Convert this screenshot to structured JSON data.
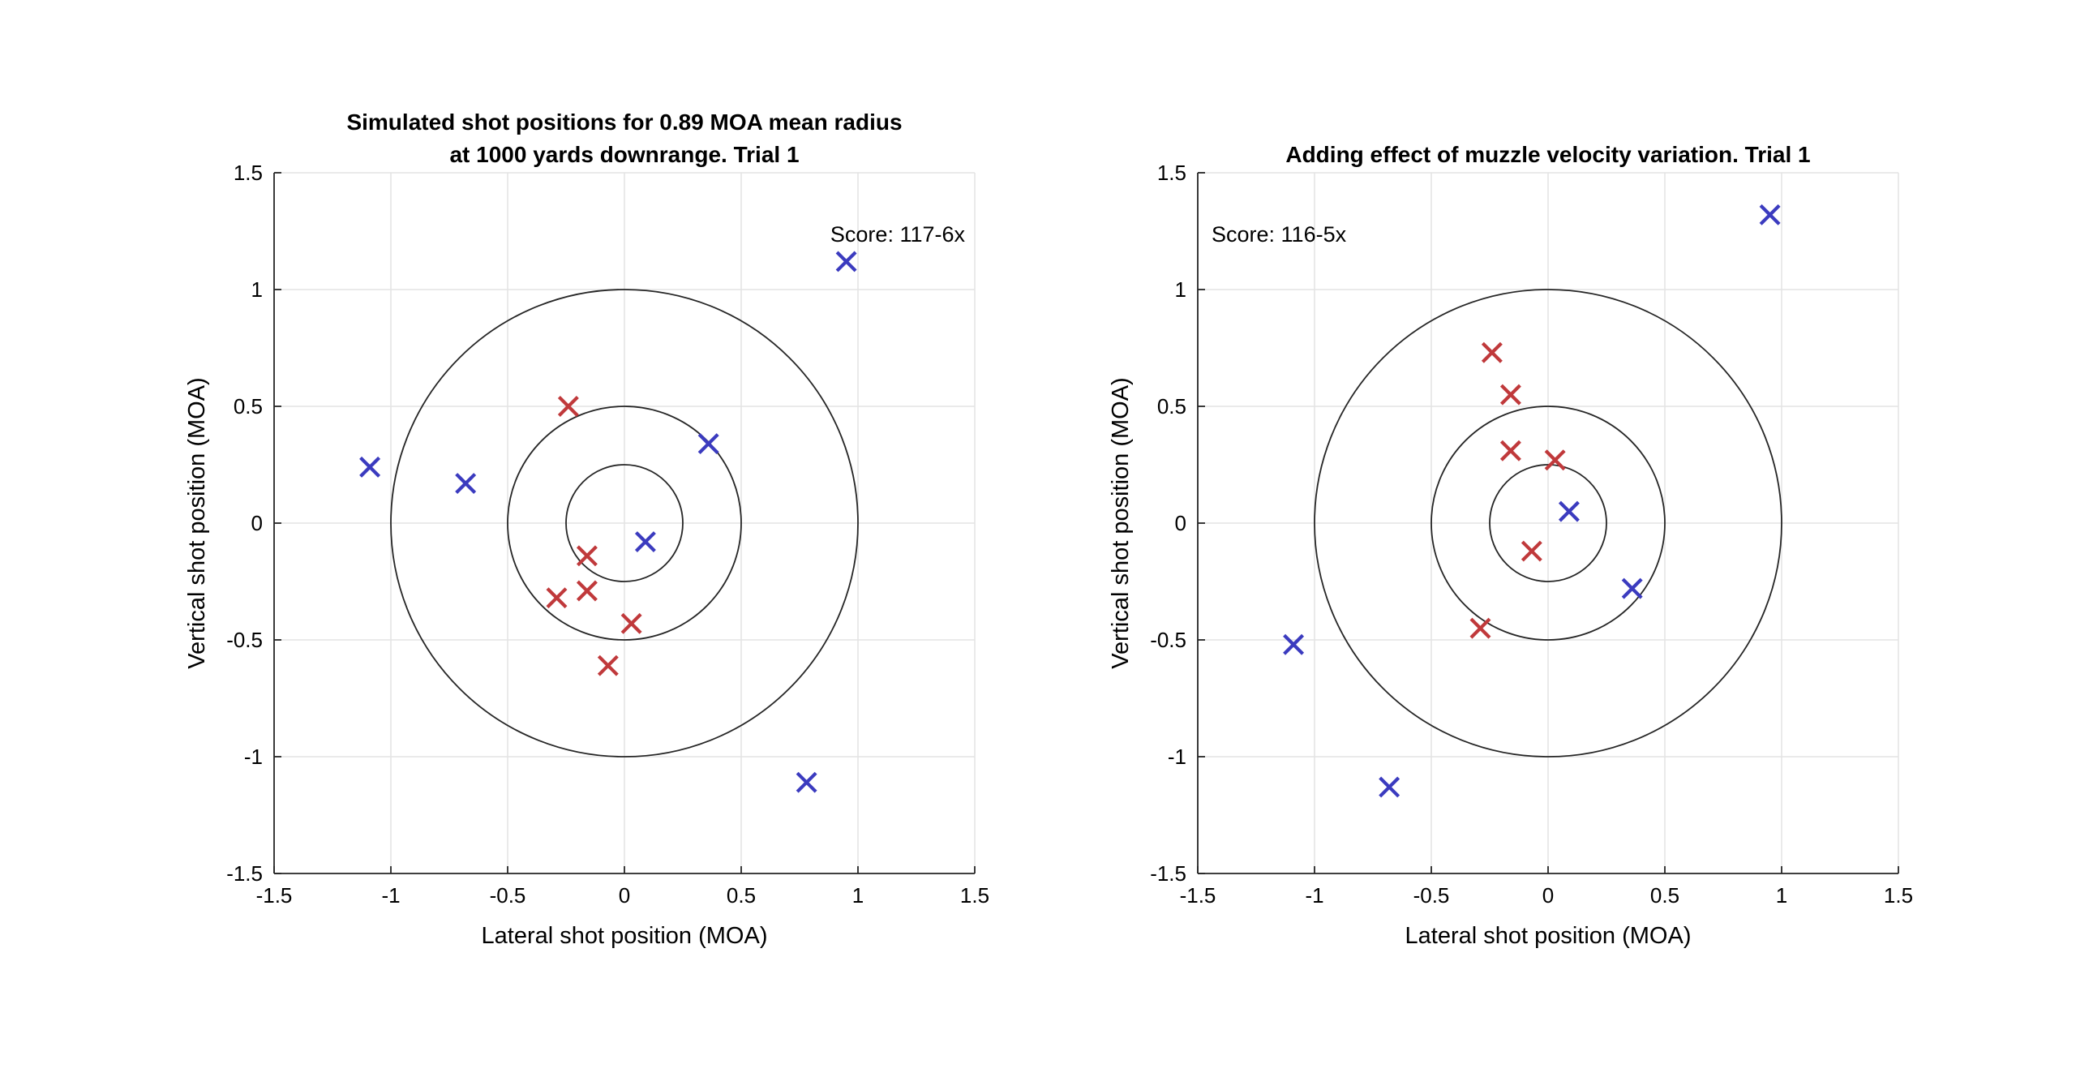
{
  "chart_data": [
    {
      "type": "scatter",
      "title": [
        "Simulated shot positions for 0.89 MOA mean radius",
        "at 1000 yards downrange. Trial 1"
      ],
      "xlabel": "Lateral shot position (MOA)",
      "ylabel": "Vertical shot position (MOA)",
      "xlim": [
        -1.5,
        1.5
      ],
      "ylim": [
        -1.5,
        1.5
      ],
      "xticks": [
        -1.5,
        -1,
        -0.5,
        0,
        0.5,
        1,
        1.5
      ],
      "yticks": [
        -1.5,
        -1,
        -0.5,
        0,
        0.5,
        1,
        1.5
      ],
      "xtick_labels": [
        "-1.5",
        "-1",
        "-0.5",
        "0",
        "0.5",
        "1",
        "1.5"
      ],
      "ytick_labels": [
        "-1.5",
        "-1",
        "-0.5",
        "0",
        "0.5",
        "1",
        "1.5"
      ],
      "grid": true,
      "rings": [
        0.25,
        0.5,
        1.0
      ],
      "annotation": "Score: 117-6x",
      "annotation_position": "top-right",
      "series": [
        {
          "color": "#c0393b",
          "marker": "x",
          "points": [
            [
              -0.24,
              0.5
            ],
            [
              -0.16,
              -0.14
            ],
            [
              -0.16,
              -0.29
            ],
            [
              -0.29,
              -0.32
            ],
            [
              0.03,
              -0.43
            ],
            [
              -0.07,
              -0.61
            ]
          ]
        },
        {
          "color": "#3b3bbf",
          "marker": "x",
          "points": [
            [
              -1.09,
              0.24
            ],
            [
              -0.68,
              0.17
            ],
            [
              0.36,
              0.34
            ],
            [
              0.09,
              -0.08
            ],
            [
              0.95,
              1.12
            ],
            [
              0.78,
              -1.11
            ]
          ]
        }
      ]
    },
    {
      "type": "scatter",
      "title": [
        "Adding effect of muzzle velocity variation. Trial 1"
      ],
      "xlabel": "Lateral shot position (MOA)",
      "ylabel": "Vertical shot position (MOA)",
      "xlim": [
        -1.5,
        1.5
      ],
      "ylim": [
        -1.5,
        1.5
      ],
      "xticks": [
        -1.5,
        -1,
        -0.5,
        0,
        0.5,
        1,
        1.5
      ],
      "yticks": [
        -1.5,
        -1,
        -0.5,
        0,
        0.5,
        1,
        1.5
      ],
      "xtick_labels": [
        "-1.5",
        "-1",
        "-0.5",
        "0",
        "0.5",
        "1",
        "1.5"
      ],
      "ytick_labels": [
        "-1.5",
        "-1",
        "-0.5",
        "0",
        "0.5",
        "1",
        "1.5"
      ],
      "grid": true,
      "rings": [
        0.25,
        0.5,
        1.0
      ],
      "annotation": "Score: 116-5x",
      "annotation_position": "top-left",
      "series": [
        {
          "color": "#c0393b",
          "marker": "x",
          "points": [
            [
              -0.24,
              0.73
            ],
            [
              -0.16,
              0.55
            ],
            [
              -0.16,
              0.31
            ],
            [
              0.03,
              0.27
            ],
            [
              -0.07,
              -0.12
            ],
            [
              -0.29,
              -0.45
            ]
          ]
        },
        {
          "color": "#3b3bbf",
          "marker": "x",
          "points": [
            [
              -1.09,
              -0.52
            ],
            [
              -0.68,
              -1.13
            ],
            [
              0.36,
              -0.28
            ],
            [
              0.09,
              0.05
            ],
            [
              0.95,
              1.32
            ]
          ]
        }
      ]
    }
  ]
}
